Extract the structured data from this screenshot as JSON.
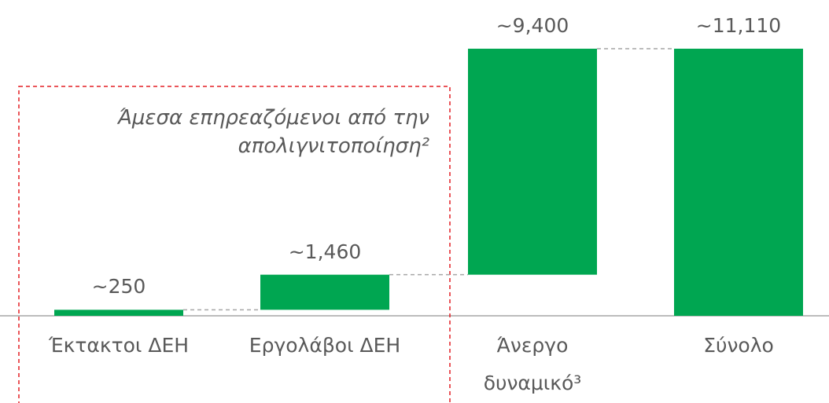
{
  "chart_data": {
    "type": "waterfall",
    "categories": [
      "Έκτακτοι ΔΕΗ",
      "Εργολάβοι ΔΕΗ",
      "Άνεργο δυναμικό³",
      "Σύνολο"
    ],
    "values": [
      250,
      1460,
      9400,
      11110
    ],
    "value_labels": [
      "~250",
      "~1,460",
      "~9,400",
      "~11,110"
    ],
    "color": "#00a651",
    "annotation": "Άμεσα επηρεαζόμενοι από την απολιγνιτοποίηση²"
  }
}
